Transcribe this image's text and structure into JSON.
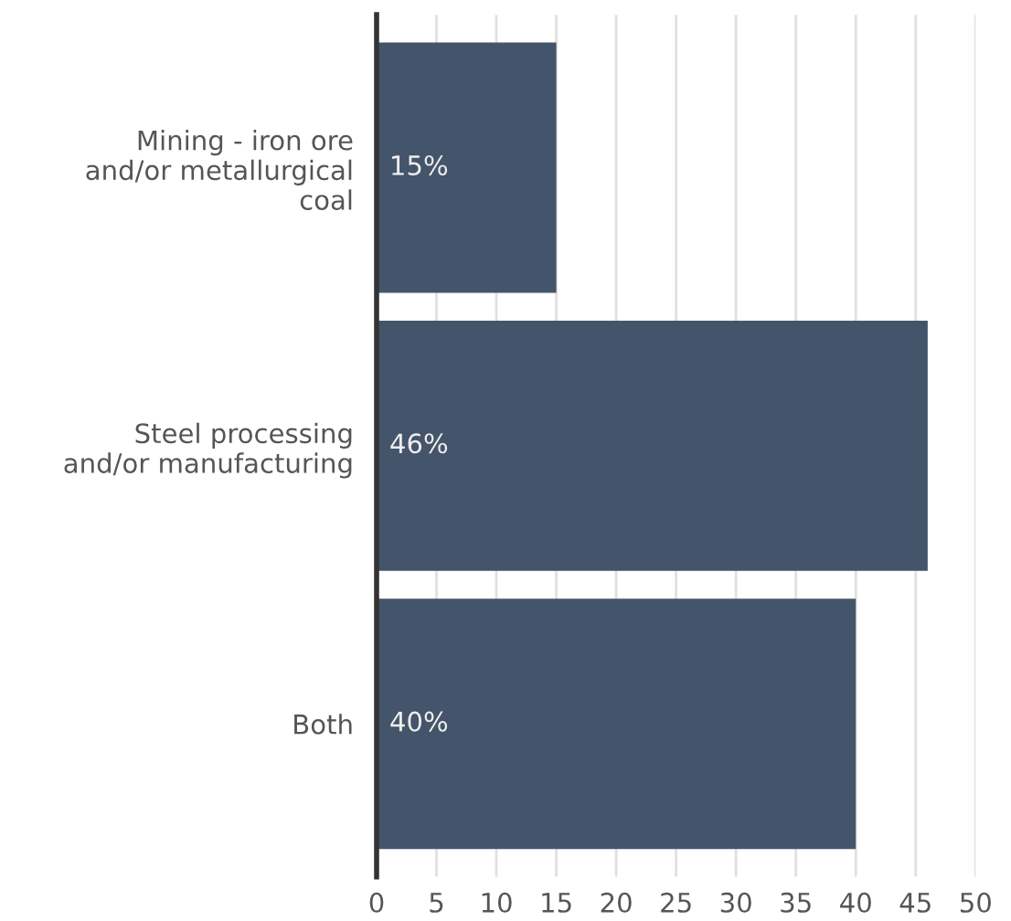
{
  "chart_data": {
    "type": "bar",
    "orientation": "horizontal",
    "categories": [
      "Mining - iron ore\nand/or metallurgical\ncoal",
      "Steel processing\nand/or manufacturing",
      "Both"
    ],
    "values": [
      15,
      46,
      40
    ],
    "value_labels": [
      "15%",
      "46%",
      "40%"
    ],
    "color": "#44546a",
    "xlim": [
      0,
      50
    ],
    "xticks": [
      0,
      5,
      10,
      15,
      20,
      25,
      30,
      35,
      40,
      45,
      50
    ],
    "grid": "x"
  }
}
